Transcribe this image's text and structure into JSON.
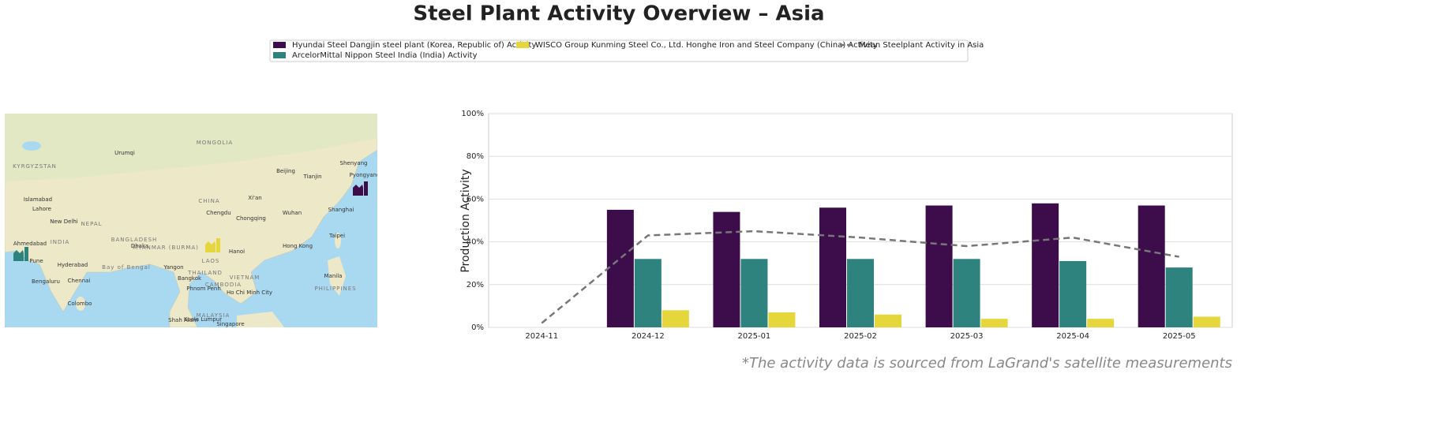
{
  "chart_data": {
    "type": "bar",
    "title": "Steel Plant Activity Overview – Asia",
    "y_label": "Production Activity",
    "footnote": "*The activity data is sourced from LaGrand's satellite measurements",
    "categories": [
      "2024-11",
      "2024-12",
      "2025-01",
      "2025-02",
      "2025-03",
      "2025-04",
      "2025-05"
    ],
    "series": [
      {
        "name": "Hyundai Steel Dangjin steel plant (Korea, Republic of) Activity",
        "color": "#3d0c4a",
        "type": "bar",
        "values": [
          null,
          55,
          54,
          56,
          57,
          58,
          57
        ]
      },
      {
        "name": "ArcelorMittal Nippon Steel India (India) Activity",
        "color": "#2e837e",
        "type": "bar",
        "values": [
          null,
          32,
          32,
          32,
          32,
          31,
          28
        ]
      },
      {
        "name": "WISCO Group Kunming Steel Co., Ltd. Honghe Iron and Steel Company (China) Activity",
        "color": "#e5d63c",
        "type": "bar",
        "values": [
          null,
          8,
          7,
          6,
          4,
          4,
          5
        ]
      },
      {
        "name": "Mean Steelplant Activity in Asia",
        "color": "#777777",
        "type": "line",
        "values": [
          2,
          43,
          45,
          42,
          38,
          42,
          33
        ]
      }
    ],
    "ylim": [
      0,
      100
    ],
    "yticks": [
      {
        "value": 0,
        "label": "0%"
      },
      {
        "value": 20,
        "label": "20%"
      },
      {
        "value": 40,
        "label": "40%"
      },
      {
        "value": 60,
        "label": "60%"
      },
      {
        "value": 80,
        "label": "80%"
      },
      {
        "value": 100,
        "label": "100%"
      }
    ],
    "grid": true
  },
  "map": {
    "labels": [
      "MONGOLIA",
      "CHINA",
      "Beijing",
      "Tianjin",
      "Shenyang",
      "Pyongyang",
      "Urumqi",
      "KYRGYZSTAN",
      "Islamabad",
      "Lahore",
      "New Delhi",
      "NEPAL",
      "INDIA",
      "Ahmedabad",
      "Pune",
      "Hyderabad",
      "Bengaluru",
      "Chennai",
      "Colombo",
      "BANGLADESH",
      "Dhaka",
      "MYANMAR (BURMA)",
      "Bay of Bengal",
      "Yangon",
      "LAOS",
      "Hanoi",
      "THAILAND",
      "Bangkok",
      "VIETNAM",
      "CAMBODIA",
      "Phnom Penh",
      "Ho Chi Minh City",
      "Chengdu",
      "Chongqing",
      "Xi'an",
      "Wuhan",
      "Shanghai",
      "Hong Kong",
      "Taipei",
      "Manila",
      "PHILIPPINES",
      "MALAYSIA",
      "Kuala Lumpur",
      "Shah Alam",
      "Singapore"
    ]
  }
}
